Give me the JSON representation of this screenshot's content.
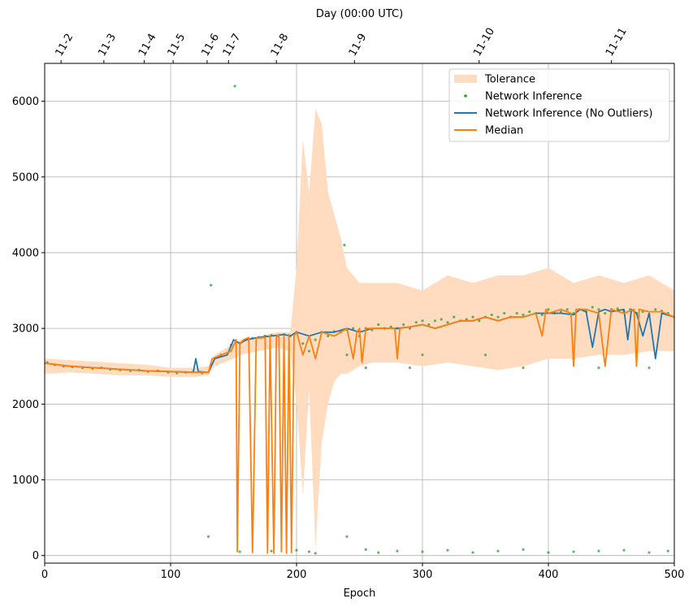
{
  "chart_data": {
    "type": "line",
    "title": "",
    "xlabel": "Epoch",
    "ylabel": "",
    "top_xlabel": "Day (00:00 UTC)",
    "xlim": [
      0,
      500
    ],
    "ylim": [
      -100,
      6500
    ],
    "x_ticks": [
      0,
      100,
      200,
      300,
      400,
      500
    ],
    "x_tick_labels": [
      "0",
      "100",
      "200",
      "300",
      "400",
      "500"
    ],
    "y_ticks": [
      0,
      1000,
      2000,
      3000,
      4000,
      5000,
      6000
    ],
    "y_tick_labels": [
      "0",
      "1000",
      "2000",
      "3000",
      "4000",
      "5000",
      "6000"
    ],
    "top_ticks": [
      {
        "epoch": 13,
        "label": "11-2"
      },
      {
        "epoch": 47,
        "label": "11-3"
      },
      {
        "epoch": 79,
        "label": "11-4"
      },
      {
        "epoch": 102,
        "label": "11-5"
      },
      {
        "epoch": 129,
        "label": "11-6"
      },
      {
        "epoch": 146,
        "label": "11-7"
      },
      {
        "epoch": 184,
        "label": "11-8"
      },
      {
        "epoch": 246,
        "label": "11-9"
      },
      {
        "epoch": 345,
        "label": "11-10"
      },
      {
        "epoch": 450,
        "label": "11-11"
      }
    ],
    "grid": true,
    "legend_position": "top-right",
    "colors": {
      "tolerance": "#ffdcbf",
      "network_inference": "#2ca02c",
      "network_inference_no_outliers": "#1f77b4",
      "median": "#ff7f0e"
    },
    "series": [
      {
        "name": "Tolerance",
        "kind": "band",
        "x": [
          0,
          20,
          40,
          60,
          80,
          100,
          120,
          130,
          135,
          150,
          155,
          170,
          185,
          195,
          200,
          205,
          210,
          215,
          220,
          225,
          230,
          235,
          240,
          250,
          260,
          280,
          300,
          320,
          340,
          360,
          380,
          400,
          420,
          440,
          460,
          480,
          500
        ],
        "lower": [
          2400,
          2420,
          2400,
          2380,
          2380,
          2360,
          2360,
          2380,
          2500,
          2600,
          2650,
          2700,
          2750,
          2700,
          2000,
          800,
          2200,
          100,
          1500,
          2000,
          2300,
          2400,
          2400,
          2500,
          2550,
          2550,
          2500,
          2550,
          2500,
          2450,
          2500,
          2600,
          2600,
          2650,
          2650,
          2700,
          2700
        ],
        "upper": [
          2600,
          2580,
          2560,
          2540,
          2520,
          2480,
          2480,
          2500,
          2650,
          2800,
          2850,
          2900,
          2950,
          2950,
          3800,
          5500,
          4800,
          5900,
          5700,
          4800,
          4500,
          4200,
          3800,
          3600,
          3600,
          3600,
          3500,
          3700,
          3600,
          3700,
          3700,
          3800,
          3600,
          3700,
          3600,
          3700,
          3500
        ]
      },
      {
        "name": "Network Inference",
        "kind": "scatter",
        "x": [
          2,
          8,
          15,
          22,
          30,
          38,
          45,
          52,
          60,
          68,
          75,
          82,
          90,
          98,
          105,
          112,
          118,
          125,
          130,
          132,
          140,
          148,
          151,
          155,
          160,
          165,
          170,
          175,
          180,
          185,
          190,
          195,
          200,
          205,
          210,
          215,
          220,
          225,
          230,
          235,
          238,
          240,
          245,
          250,
          255,
          260,
          265,
          270,
          275,
          280,
          285,
          290,
          295,
          300,
          305,
          310,
          315,
          320,
          325,
          330,
          335,
          340,
          345,
          350,
          355,
          360,
          365,
          370,
          375,
          380,
          385,
          390,
          395,
          400,
          405,
          410,
          415,
          420,
          425,
          430,
          435,
          440,
          445,
          450,
          455,
          460,
          465,
          470,
          475,
          480,
          485,
          490,
          495,
          500,
          155,
          180,
          200,
          210,
          215,
          240,
          255,
          265,
          280,
          300,
          320,
          340,
          360,
          380,
          400,
          420,
          440,
          460,
          480,
          495,
          240,
          300,
          350,
          420,
          480,
          255,
          290,
          380,
          440
        ],
        "y": [
          2550,
          2520,
          2500,
          2490,
          2480,
          2470,
          2480,
          2460,
          2450,
          2440,
          2450,
          2430,
          2440,
          2420,
          2410,
          2420,
          2430,
          2410,
          250,
          3570,
          2650,
          2780,
          6200,
          2800,
          2850,
          2870,
          2880,
          2900,
          2910,
          2900,
          2920,
          2900,
          2950,
          2800,
          2700,
          2850,
          2950,
          2900,
          2960,
          2950,
          4100,
          2980,
          3000,
          2900,
          3000,
          2980,
          3050,
          3000,
          3020,
          3000,
          3050,
          3000,
          3080,
          3100,
          3050,
          3100,
          3120,
          3080,
          3150,
          3100,
          3120,
          3150,
          3100,
          3150,
          3180,
          3150,
          3200,
          3150,
          3200,
          3180,
          3220,
          3200,
          3180,
          3250,
          3200,
          3220,
          3250,
          3200,
          3250,
          3220,
          3280,
          3250,
          3200,
          3250,
          3260,
          3230,
          3250,
          3200,
          3220,
          3180,
          3250,
          3230,
          3200,
          3150,
          50,
          60,
          70,
          50,
          30,
          250,
          80,
          40,
          60,
          50,
          70,
          40,
          60,
          80,
          40,
          50,
          60,
          70,
          40,
          60,
          2650,
          2650,
          2650,
          2600,
          2480,
          2480,
          2480,
          2480,
          2480
        ]
      },
      {
        "name": "Network Inference (No Outliers)",
        "kind": "line",
        "x": [
          0,
          20,
          40,
          60,
          80,
          100,
          118,
          120,
          122,
          130,
          135,
          145,
          150,
          155,
          160,
          170,
          180,
          190,
          195,
          200,
          210,
          220,
          230,
          240,
          250,
          260,
          270,
          280,
          290,
          300,
          310,
          320,
          330,
          340,
          350,
          360,
          370,
          380,
          390,
          400,
          410,
          420,
          425,
          430,
          435,
          440,
          445,
          450,
          460,
          463,
          466,
          470,
          475,
          480,
          485,
          490,
          500
        ],
        "y": [
          2540,
          2500,
          2480,
          2460,
          2440,
          2430,
          2420,
          2600,
          2430,
          2420,
          2600,
          2650,
          2850,
          2800,
          2850,
          2880,
          2900,
          2920,
          2900,
          2950,
          2900,
          2950,
          2950,
          3000,
          2950,
          3000,
          3000,
          3000,
          3020,
          3050,
          3000,
          3050,
          3100,
          3100,
          3150,
          3100,
          3150,
          3150,
          3200,
          3200,
          3200,
          3180,
          3250,
          3220,
          2750,
          3220,
          3250,
          3220,
          3250,
          2850,
          3250,
          3200,
          2900,
          3200,
          2600,
          3200,
          3150
        ]
      },
      {
        "name": "Median",
        "kind": "line",
        "x": [
          0,
          20,
          40,
          60,
          80,
          100,
          120,
          130,
          133,
          140,
          148,
          152,
          153,
          155,
          158,
          162,
          165,
          168,
          175,
          177,
          179,
          182,
          184,
          186,
          188,
          190,
          192,
          194,
          196,
          198,
          200,
          205,
          210,
          215,
          220,
          230,
          235,
          240,
          245,
          248,
          250,
          252,
          255,
          260,
          270,
          278,
          280,
          282,
          290,
          300,
          310,
          320,
          330,
          340,
          350,
          360,
          370,
          380,
          390,
          395,
          398,
          400,
          410,
          418,
          420,
          422,
          430,
          440,
          445,
          450,
          460,
          468,
          470,
          472,
          480,
          490,
          500
        ],
        "y": [
          2540,
          2500,
          2480,
          2460,
          2440,
          2430,
          2420,
          2420,
          2600,
          2650,
          2700,
          2850,
          50,
          2800,
          2850,
          2880,
          40,
          2870,
          2880,
          30,
          2900,
          30,
          2900,
          2920,
          50,
          2910,
          30,
          2920,
          40,
          2900,
          2950,
          2650,
          2900,
          2600,
          2950,
          2900,
          2950,
          3000,
          2600,
          2950,
          3000,
          2550,
          3000,
          3000,
          3000,
          3000,
          2600,
          3000,
          3020,
          3050,
          3000,
          3050,
          3100,
          3100,
          3150,
          3100,
          3150,
          3150,
          3200,
          2900,
          3250,
          3200,
          3250,
          3200,
          2500,
          3250,
          3250,
          3200,
          2500,
          3250,
          3200,
          3250,
          2500,
          3250,
          3220,
          3220,
          3150
        ]
      }
    ]
  }
}
